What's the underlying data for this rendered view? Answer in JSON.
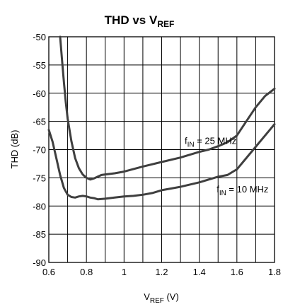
{
  "chart_data": {
    "type": "line",
    "title": {
      "main": "THD vs V",
      "sub": "REF"
    },
    "xlabel": {
      "main": "V",
      "sub": "REF",
      "rest": " (V)"
    },
    "ylabel": "THD (dB)",
    "xlim": [
      0.6,
      1.8
    ],
    "ylim": [
      -90,
      -50
    ],
    "xticks": [
      "0.6",
      "0.8",
      "1",
      "1.2",
      "1.4",
      "1.6",
      "1.8"
    ],
    "yticks": [
      "-50",
      "-55",
      "-60",
      "-65",
      "-70",
      "-75",
      "-80",
      "-85",
      "-90"
    ],
    "x_grid_values": [
      0.6,
      0.7,
      0.8,
      0.9,
      1.0,
      1.1,
      1.2,
      1.3,
      1.4,
      1.5,
      1.6,
      1.7,
      1.8
    ],
    "y_grid_values": [
      -90,
      -85,
      -80,
      -75,
      -70,
      -65,
      -60,
      -55,
      -50
    ],
    "grid": true,
    "series": [
      {
        "name": "f_IN = 25 MHz",
        "x": [
          0.66,
          0.67,
          0.68,
          0.69,
          0.7,
          0.72,
          0.74,
          0.76,
          0.78,
          0.8,
          0.82,
          0.84,
          0.86,
          0.88,
          0.9,
          0.95,
          1.0,
          1.1,
          1.2,
          1.3,
          1.4,
          1.45,
          1.5,
          1.55,
          1.6,
          1.65,
          1.7,
          1.75,
          1.8
        ],
        "y": [
          -50,
          -54,
          -58,
          -61.5,
          -64.5,
          -68.5,
          -71.5,
          -73.3,
          -74.4,
          -75.0,
          -75.3,
          -75.1,
          -74.8,
          -74.5,
          -74.4,
          -74.2,
          -73.9,
          -73.0,
          -72.2,
          -71.4,
          -70.4,
          -70.0,
          -69.4,
          -68.7,
          -67.5,
          -65.0,
          -62.5,
          -60.5,
          -59.2
        ]
      },
      {
        "name": "f_IN = 10 MHz",
        "x": [
          0.6,
          0.62,
          0.64,
          0.66,
          0.68,
          0.7,
          0.72,
          0.74,
          0.76,
          0.78,
          0.8,
          0.82,
          0.84,
          0.86,
          0.9,
          0.95,
          1.0,
          1.05,
          1.1,
          1.15,
          1.2,
          1.25,
          1.3,
          1.4,
          1.5,
          1.55,
          1.6,
          1.65,
          1.7,
          1.75,
          1.8
        ],
        "y": [
          -66.5,
          -68.6,
          -71.5,
          -74.5,
          -76.8,
          -78.0,
          -78.4,
          -78.5,
          -78.3,
          -78.2,
          -78.3,
          -78.5,
          -78.6,
          -78.8,
          -78.7,
          -78.5,
          -78.3,
          -78.2,
          -78.0,
          -77.7,
          -77.2,
          -76.9,
          -76.6,
          -75.8,
          -74.8,
          -74.5,
          -73.5,
          -71.5,
          -69.5,
          -67.5,
          -65.5
        ]
      }
    ],
    "annotations": [
      {
        "main": "f",
        "sub": "IN",
        "rest": " = 25 MHz",
        "x": 1.46,
        "y": -69.0
      },
      {
        "main": "f",
        "sub": "IN",
        "rest": " = 10 MHz",
        "x": 1.63,
        "y": -77.6
      }
    ],
    "legend": "none"
  }
}
